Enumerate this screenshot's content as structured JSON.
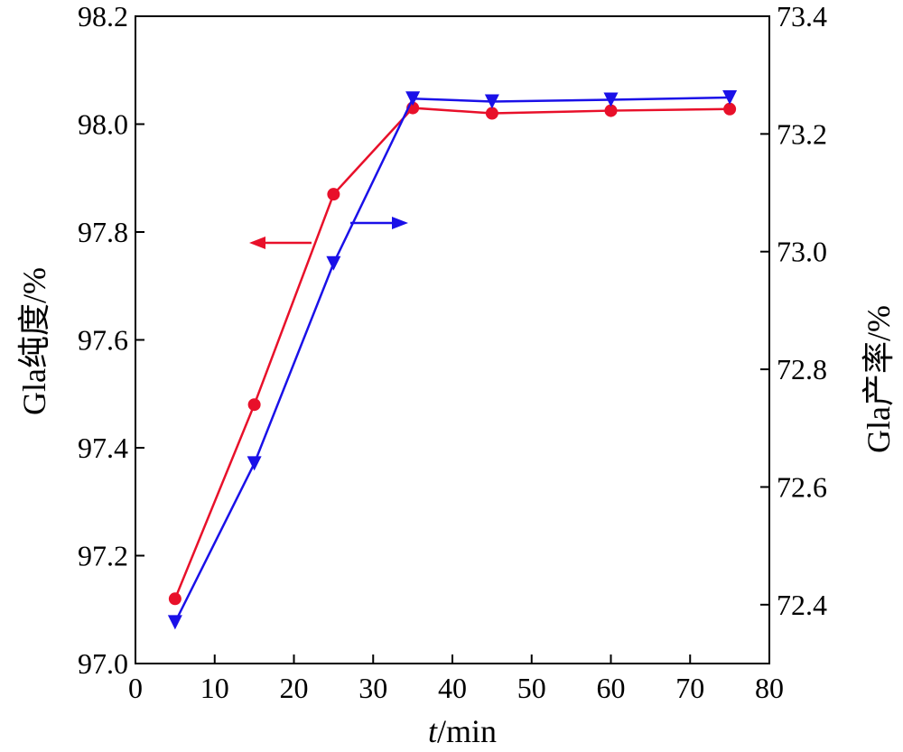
{
  "chart_data": {
    "type": "line",
    "xlabel_italic": "t",
    "xlabel_rest": "/min",
    "ylabel_left": "Gla纯度/%",
    "ylabel_right": "Gla产率/%",
    "xlim": [
      0,
      80
    ],
    "ylim_left": [
      97.0,
      98.2
    ],
    "ylim_right": [
      72.3,
      73.4
    ],
    "x_ticks": [
      "0",
      "10",
      "20",
      "30",
      "40",
      "50",
      "60",
      "70",
      "80"
    ],
    "y_left_ticks": [
      "97.0",
      "97.2",
      "97.4",
      "97.6",
      "97.8",
      "98.0",
      "98.2"
    ],
    "y_right_ticks": [
      "72.4",
      "72.6",
      "72.8",
      "73.0",
      "73.2",
      "73.4"
    ],
    "x": [
      5,
      15,
      25,
      35,
      45,
      60,
      75
    ],
    "series": [
      {
        "axis": "left",
        "marker": "circle",
        "color": "#e8102a",
        "values": [
          97.12,
          97.48,
          97.87,
          98.03,
          98.02,
          98.025,
          98.028
        ]
      },
      {
        "axis": "right",
        "marker": "triangle-down",
        "color": "#1a10e8",
        "values": [
          72.37,
          72.64,
          72.98,
          73.26,
          73.255,
          73.258,
          73.262
        ]
      }
    ],
    "annotations": [
      {
        "direction": "left",
        "color": "#e8102a",
        "points_to": "left-axis"
      },
      {
        "direction": "right",
        "color": "#1a10e8",
        "points_to": "right-axis"
      }
    ]
  }
}
